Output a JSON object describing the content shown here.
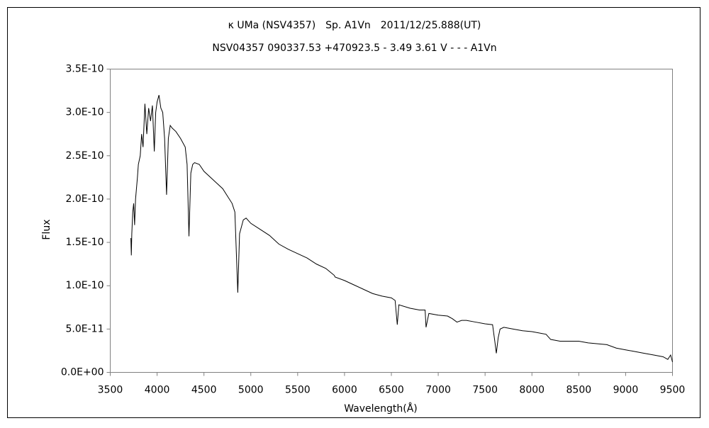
{
  "chart_data": {
    "type": "line",
    "title": "κ UMa (NSV4357)　Sp. A1Vn　2011/12/25.888(UT)",
    "subtitle": "NSV04357 090337.53 +470923.5 - 3.49 3.61  V - - -  A1Vn",
    "x_label": "Wavelength(Å)",
    "y_label": "Flux",
    "xlim": [
      3500,
      9500
    ],
    "xticks": [
      3500,
      4000,
      4500,
      5000,
      5500,
      6000,
      6500,
      7000,
      7500,
      8000,
      8500,
      9000,
      9500
    ],
    "ylim": [
      0,
      3.5e-10
    ],
    "yticks": [
      {
        "value": 0,
        "label": "0.0E+00"
      },
      {
        "value": 5e-11,
        "label": "5.0E-11"
      },
      {
        "value": 1e-10,
        "label": "1.0E-10"
      },
      {
        "value": 1.5e-10,
        "label": "1.5E-10"
      },
      {
        "value": 2e-10,
        "label": "2.0E-10"
      },
      {
        "value": 2.5e-10,
        "label": "2.5E-10"
      },
      {
        "value": 3e-10,
        "label": "3.0E-10"
      },
      {
        "value": 3.5e-10,
        "label": "3.5E-10"
      }
    ],
    "grid": false,
    "x": [
      3720,
      3725,
      3730,
      3740,
      3750,
      3760,
      3770,
      3790,
      3800,
      3820,
      3835,
      3850,
      3870,
      3890,
      3910,
      3930,
      3950,
      3970,
      3985,
      4000,
      4020,
      4040,
      4060,
      4080,
      4101,
      4120,
      4140,
      4160,
      4200,
      4250,
      4300,
      4320,
      4340,
      4360,
      4380,
      4400,
      4450,
      4500,
      4600,
      4700,
      4800,
      4830,
      4861,
      4880,
      4920,
      4950,
      5000,
      5100,
      5200,
      5300,
      5400,
      5500,
      5600,
      5700,
      5800,
      5890,
      5900,
      6000,
      6100,
      6200,
      6300,
      6400,
      6500,
      6540,
      6563,
      6580,
      6700,
      6800,
      6860,
      6870,
      6900,
      7000,
      7100,
      7150,
      7200,
      7250,
      7300,
      7400,
      7500,
      7580,
      7605,
      7620,
      7640,
      7660,
      7700,
      7800,
      7900,
      8000,
      8100,
      8150,
      8200,
      8300,
      8400,
      8500,
      8600,
      8700,
      8800,
      8900,
      9000,
      9100,
      9200,
      9300,
      9400,
      9450,
      9480,
      9500
    ],
    "series": [
      {
        "name": "Flux",
        "color": "#000000",
        "values": [
          1.55e-10,
          1.35e-10,
          1.6e-10,
          1.85e-10,
          1.95e-10,
          1.7e-10,
          2e-10,
          2.25e-10,
          2.4e-10,
          2.5e-10,
          2.75e-10,
          2.6e-10,
          3.1e-10,
          2.75e-10,
          3.05e-10,
          2.9e-10,
          3.08e-10,
          2.55e-10,
          3e-10,
          3.12e-10,
          3.2e-10,
          3.05e-10,
          3e-10,
          2.7e-10,
          2.05e-10,
          2.7e-10,
          2.85e-10,
          2.82e-10,
          2.78e-10,
          2.7e-10,
          2.6e-10,
          2.4e-10,
          1.57e-10,
          2.3e-10,
          2.4e-10,
          2.42e-10,
          2.4e-10,
          2.32e-10,
          2.22e-10,
          2.12e-10,
          1.95e-10,
          1.85e-10,
          9.2e-11,
          1.6e-10,
          1.76e-10,
          1.78e-10,
          1.72e-10,
          1.65e-10,
          1.58e-10,
          1.48e-10,
          1.42e-10,
          1.37e-10,
          1.32e-10,
          1.25e-10,
          1.2e-10,
          1.12e-10,
          1.1e-10,
          1.06e-10,
          1.01e-10,
          9.6e-11,
          9.1e-11,
          8.8e-11,
          8.6e-11,
          8.3e-11,
          5.5e-11,
          7.8e-11,
          7.4e-11,
          7.2e-11,
          7.2e-11,
          5.2e-11,
          6.8e-11,
          6.6e-11,
          6.5e-11,
          6.2e-11,
          5.8e-11,
          6e-11,
          6e-11,
          5.8e-11,
          5.6e-11,
          5.5e-11,
          3.5e-11,
          2.2e-11,
          4e-11,
          5e-11,
          5.2e-11,
          5e-11,
          4.8e-11,
          4.7e-11,
          4.5e-11,
          4.4e-11,
          3.8e-11,
          3.6e-11,
          3.6e-11,
          3.6e-11,
          3.4e-11,
          3.3e-11,
          3.2e-11,
          2.8e-11,
          2.6e-11,
          2.4e-11,
          2.2e-11,
          2e-11,
          1.8e-11,
          1.5e-11,
          2e-11,
          1.2e-11
        ]
      }
    ]
  }
}
